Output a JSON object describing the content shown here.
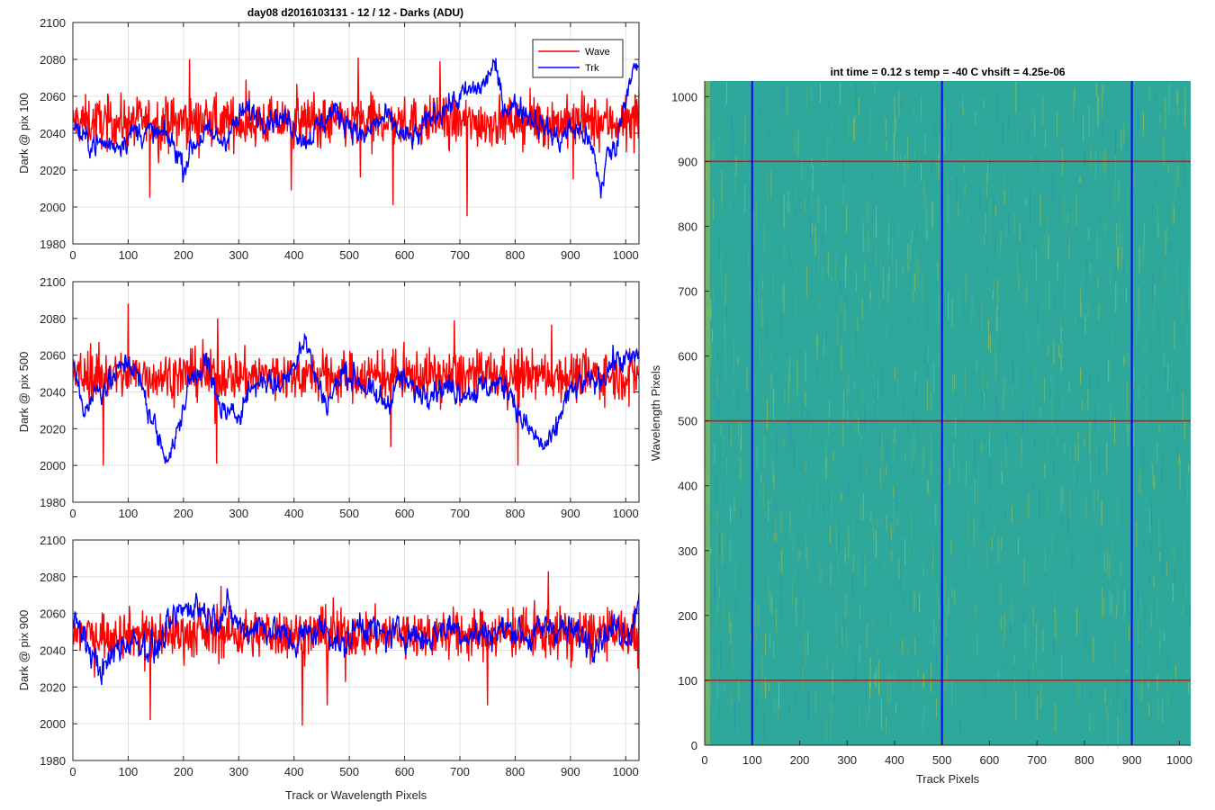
{
  "figure_title": "day08 d2016103131 - 12 / 12 - Darks (ADU)",
  "colors": {
    "wave": "#ff0000",
    "trk": "#0000ff",
    "heat_base": "#2ea89a",
    "heat_hi": "#b8c43c",
    "heat_lo": "#1f8fb0"
  },
  "chart_data": [
    {
      "type": "line",
      "panel": "top",
      "ylabel": "Dark @ pix 100",
      "xlabel": "",
      "xlim": [
        0,
        1024
      ],
      "ylim": [
        1980,
        2100
      ],
      "xticks": [
        0,
        100,
        200,
        300,
        400,
        500,
        600,
        700,
        800,
        900,
        1000
      ],
      "yticks": [
        1980,
        2000,
        2020,
        2040,
        2060,
        2080,
        2100
      ],
      "grid": true,
      "legend": {
        "placement": "top-right",
        "entries": [
          "Wave",
          "Trk"
        ]
      },
      "series": [
        {
          "name": "Wave",
          "color": "#ff0000",
          "mean": 2046,
          "noise": 9,
          "spike_down": [
            [
              139,
              2005
            ],
            [
              395,
              2009
            ],
            [
              520,
              2016
            ],
            [
              579,
              2001
            ],
            [
              713,
              1995
            ],
            [
              905,
              2015
            ]
          ],
          "spike_up": [
            [
              211,
              2080
            ],
            [
              516,
              2081
            ],
            [
              664,
              2079
            ]
          ]
        },
        {
          "name": "Trk",
          "color": "#0000ff",
          "anchors": [
            [
              0,
              2046
            ],
            [
              20,
              2036
            ],
            [
              50,
              2034
            ],
            [
              80,
              2034
            ],
            [
              110,
              2041
            ],
            [
              140,
              2040
            ],
            [
              170,
              2038
            ],
            [
              190,
              2030
            ],
            [
              200,
              2021
            ],
            [
              215,
              2033
            ],
            [
              240,
              2040
            ],
            [
              270,
              2036
            ],
            [
              290,
              2043
            ],
            [
              310,
              2052
            ],
            [
              340,
              2050
            ],
            [
              370,
              2048
            ],
            [
              395,
              2046
            ],
            [
              420,
              2036
            ],
            [
              440,
              2042
            ],
            [
              470,
              2052
            ],
            [
              500,
              2046
            ],
            [
              525,
              2036
            ],
            [
              545,
              2045
            ],
            [
              570,
              2048
            ],
            [
              600,
              2037
            ],
            [
              625,
              2038
            ],
            [
              650,
              2050
            ],
            [
              690,
              2057
            ],
            [
              720,
              2063
            ],
            [
              745,
              2066
            ],
            [
              760,
              2078
            ],
            [
              780,
              2055
            ],
            [
              810,
              2054
            ],
            [
              850,
              2044
            ],
            [
              880,
              2036
            ],
            [
              900,
              2043
            ],
            [
              925,
              2040
            ],
            [
              945,
              2025
            ],
            [
              955,
              2008
            ],
            [
              965,
              2027
            ],
            [
              980,
              2031
            ],
            [
              1000,
              2060
            ],
            [
              1010,
              2075
            ],
            [
              1024,
              2072
            ]
          ],
          "noise": 5
        }
      ]
    },
    {
      "type": "line",
      "panel": "middle",
      "ylabel": "Dark @ pix 500",
      "xlabel": "",
      "xlim": [
        0,
        1024
      ],
      "ylim": [
        1980,
        2100
      ],
      "xticks": [
        0,
        100,
        200,
        300,
        400,
        500,
        600,
        700,
        800,
        900,
        1000
      ],
      "yticks": [
        1980,
        2000,
        2020,
        2040,
        2060,
        2080,
        2100
      ],
      "grid": true,
      "series": [
        {
          "name": "Wave",
          "color": "#ff0000",
          "mean": 2049,
          "noise": 9,
          "spike_down": [
            [
              55,
              2000
            ],
            [
              260,
              2001
            ],
            [
              805,
              2000
            ],
            [
              575,
              2010
            ]
          ],
          "spike_up": [
            [
              100,
              2088
            ],
            [
              262,
              2080
            ],
            [
              690,
              2079
            ]
          ]
        },
        {
          "name": "Trk",
          "color": "#0000ff",
          "anchors": [
            [
              0,
              2056
            ],
            [
              20,
              2030
            ],
            [
              40,
              2040
            ],
            [
              70,
              2046
            ],
            [
              100,
              2058
            ],
            [
              120,
              2046
            ],
            [
              140,
              2028
            ],
            [
              160,
              2010
            ],
            [
              175,
              2006
            ],
            [
              190,
              2018
            ],
            [
              210,
              2045
            ],
            [
              240,
              2058
            ],
            [
              260,
              2035
            ],
            [
              290,
              2025
            ],
            [
              320,
              2041
            ],
            [
              345,
              2048
            ],
            [
              370,
              2043
            ],
            [
              395,
              2051
            ],
            [
              410,
              2065
            ],
            [
              420,
              2070
            ],
            [
              440,
              2046
            ],
            [
              460,
              2034
            ],
            [
              490,
              2051
            ],
            [
              520,
              2046
            ],
            [
              545,
              2037
            ],
            [
              570,
              2034
            ],
            [
              590,
              2048
            ],
            [
              620,
              2040
            ],
            [
              650,
              2042
            ],
            [
              680,
              2042
            ],
            [
              720,
              2040
            ],
            [
              760,
              2044
            ],
            [
              790,
              2043
            ],
            [
              810,
              2025
            ],
            [
              830,
              2018
            ],
            [
              850,
              2010
            ],
            [
              870,
              2014
            ],
            [
              890,
              2036
            ],
            [
              920,
              2044
            ],
            [
              950,
              2046
            ],
            [
              980,
              2058
            ],
            [
              1000,
              2056
            ],
            [
              1024,
              2060
            ]
          ],
          "noise": 5
        }
      ]
    },
    {
      "type": "line",
      "panel": "bottom",
      "ylabel": "Dark @ pix 900",
      "xlabel": "Track or Wavelength Pixels",
      "xlim": [
        0,
        1024
      ],
      "ylim": [
        1980,
        2100
      ],
      "xticks": [
        0,
        100,
        200,
        300,
        400,
        500,
        600,
        700,
        800,
        900,
        1000
      ],
      "yticks": [
        1980,
        2000,
        2020,
        2040,
        2060,
        2080,
        2100
      ],
      "grid": true,
      "series": [
        {
          "name": "Wave",
          "color": "#ff0000",
          "mean": 2049,
          "noise": 9,
          "spike_down": [
            [
              140,
              2002
            ],
            [
              415,
              1999
            ],
            [
              460,
              2010
            ],
            [
              750,
              2010
            ]
          ],
          "spike_up": [
            [
              268,
              2075
            ],
            [
              860,
              2083
            ],
            [
              1024,
              2070
            ]
          ]
        },
        {
          "name": "Trk",
          "color": "#0000ff",
          "anchors": [
            [
              0,
              2058
            ],
            [
              30,
              2040
            ],
            [
              55,
              2028
            ],
            [
              80,
              2042
            ],
            [
              110,
              2046
            ],
            [
              150,
              2040
            ],
            [
              190,
              2060
            ],
            [
              220,
              2066
            ],
            [
              250,
              2058
            ],
            [
              280,
              2062
            ],
            [
              310,
              2050
            ],
            [
              330,
              2054
            ],
            [
              360,
              2052
            ],
            [
              400,
              2044
            ],
            [
              430,
              2050
            ],
            [
              460,
              2052
            ],
            [
              490,
              2040
            ],
            [
              520,
              2056
            ],
            [
              560,
              2048
            ],
            [
              600,
              2050
            ],
            [
              640,
              2046
            ],
            [
              680,
              2054
            ],
            [
              720,
              2048
            ],
            [
              760,
              2050
            ],
            [
              800,
              2052
            ],
            [
              830,
              2046
            ],
            [
              860,
              2054
            ],
            [
              900,
              2050
            ],
            [
              940,
              2046
            ],
            [
              980,
              2052
            ],
            [
              1010,
              2050
            ],
            [
              1024,
              2072
            ]
          ],
          "noise": 6
        }
      ]
    },
    {
      "type": "heatmap",
      "panel": "right",
      "title": "int time = 0.12 s    temp = -40 C    vhsift = 4.25e-06",
      "xlabel": "Track Pixels",
      "ylabel": "Wavelength Pixels",
      "xlim": [
        0,
        1024
      ],
      "ylim": [
        0,
        1024
      ],
      "xticks": [
        0,
        100,
        200,
        300,
        400,
        500,
        600,
        700,
        800,
        900,
        1000
      ],
      "yticks": [
        0,
        100,
        200,
        300,
        400,
        500,
        600,
        700,
        800,
        900,
        1000
      ],
      "vertical_lines": {
        "color": "#0000ff",
        "x": [
          100,
          500,
          900
        ]
      },
      "horizontal_lines": {
        "color": "#ff0000",
        "y": [
          100,
          500,
          900
        ]
      }
    }
  ]
}
